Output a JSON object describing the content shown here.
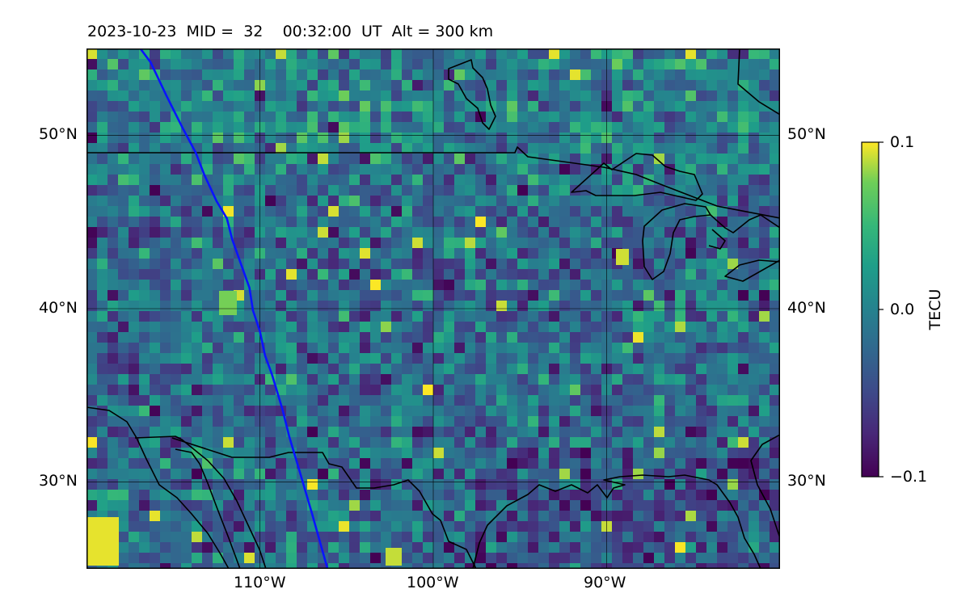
{
  "title": {
    "date": "2023-10-23",
    "mid_label": "MID =",
    "mid_value": "32",
    "time": "00:32:00",
    "time_unit": "UT",
    "alt_label": "Alt = 300 km"
  },
  "map": {
    "lon_range": [
      -120,
      -80
    ],
    "lat_range": [
      25,
      55
    ],
    "gridlines": true,
    "lat_ticks": [
      {
        "value": 30,
        "label": "30°N"
      },
      {
        "value": 40,
        "label": "40°N"
      },
      {
        "value": 50,
        "label": "50°N"
      }
    ],
    "lon_ticks": [
      {
        "value": -110,
        "label": "110°W"
      },
      {
        "value": -100,
        "label": "100°W"
      },
      {
        "value": -90,
        "label": "90°W"
      }
    ],
    "field": "TEC perturbation, pixelated noise",
    "track_color": "#0a14ff",
    "track": [
      [
        -116.9,
        55
      ],
      [
        -116.3,
        54.2
      ],
      [
        -115.4,
        52.3
      ],
      [
        -114.5,
        50.5
      ],
      [
        -113.7,
        49
      ],
      [
        -113.2,
        47.7
      ],
      [
        -112.5,
        46.2
      ],
      [
        -111.9,
        45.2
      ],
      [
        -111.6,
        44
      ],
      [
        -111.1,
        42.6
      ],
      [
        -110.6,
        41.2
      ],
      [
        -110.4,
        39.9
      ],
      [
        -110,
        38.7
      ],
      [
        -109.7,
        37.3
      ],
      [
        -109.3,
        36.2
      ],
      [
        -108.7,
        34.2
      ],
      [
        -108.3,
        32.6
      ],
      [
        -107.7,
        30.6
      ],
      [
        -107,
        28.2
      ],
      [
        -106.1,
        25
      ]
    ]
  },
  "colorbar": {
    "colormap": "viridis",
    "vmin": -0.1,
    "vmax": 0.1,
    "ticks": [
      {
        "value": 0.1,
        "label": "0.1"
      },
      {
        "value": 0.0,
        "label": "0.0"
      },
      {
        "value": -0.1,
        "label": "−0.1"
      }
    ],
    "label": "TECU"
  }
}
